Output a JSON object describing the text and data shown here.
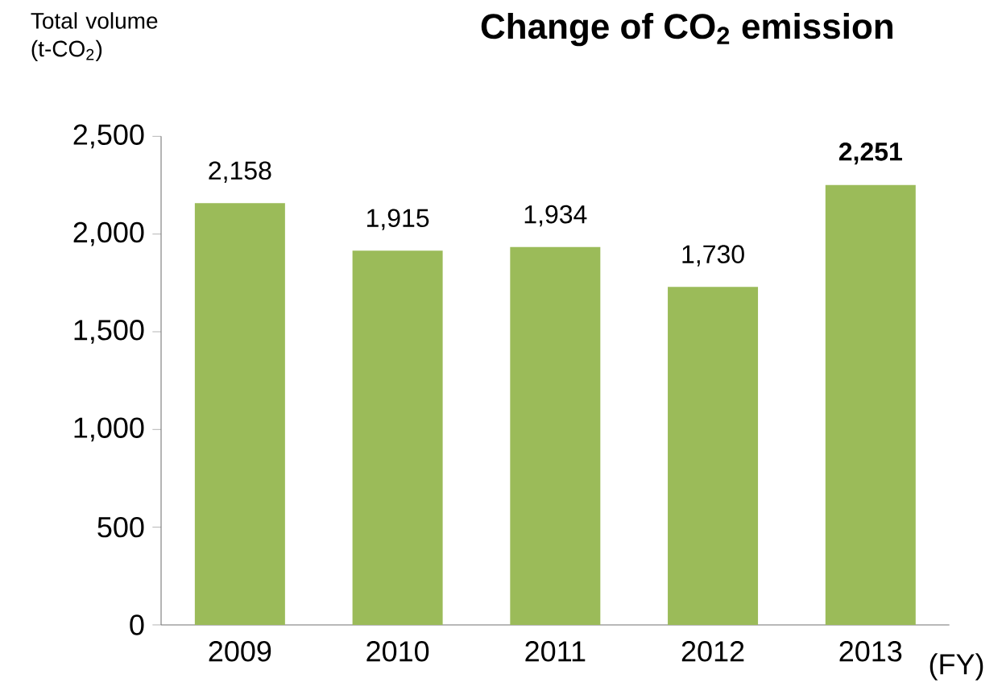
{
  "chart_data": {
    "type": "bar",
    "title": "Change of CO$_{2}$ emission",
    "ylabel": "Total volume (t-CO$_{2}$)",
    "xlabel": "(FY)",
    "categories": [
      "2009",
      "2010",
      "2011",
      "2012",
      "2013"
    ],
    "values": [
      2158,
      1915,
      1934,
      1730,
      2251
    ],
    "value_labels": [
      "2,158",
      "1,915",
      "1,934",
      "1,730",
      "**2,251**"
    ],
    "color": "#9bbb59",
    "ylim": [
      0,
      2500
    ],
    "yticks": [
      {
        "value": 0,
        "label": "0"
      },
      {
        "value": 500,
        "label": "500"
      },
      {
        "value": 1000,
        "label": "1,000"
      },
      {
        "value": 1500,
        "label": "1,500"
      },
      {
        "value": 2000,
        "label": "2,000"
      },
      {
        "value": 2500,
        "label": "2,500"
      }
    ]
  }
}
